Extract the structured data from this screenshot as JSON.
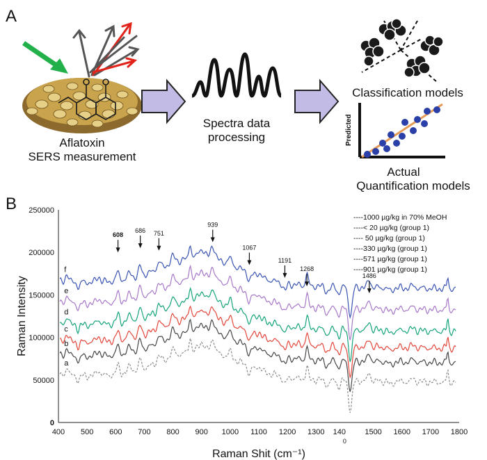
{
  "panel_a": {
    "letter": "A",
    "measurement_caption_line1": "Aflatoxin",
    "measurement_caption_line2": "SERS measurement",
    "processing_caption_line1": "Spectra data",
    "processing_caption_line2": "processing",
    "classification_caption": "Classification models",
    "scatter_ylabel": "Predicted",
    "scatter_xlabel": "Actual",
    "quantification_caption": "Quantification models",
    "colors": {
      "arrow": "#b6aee0",
      "green_beam": "#22b04b",
      "red_beam": "#e2231a",
      "gray_beam": "#555555",
      "dots": "#2b3fa8",
      "fit_line": "#e59a55"
    }
  },
  "panel_b": {
    "letter": "B",
    "chart_data": {
      "type": "line",
      "title": "",
      "xlabel": "Raman Shit (cm⁻¹)",
      "ylabel": "Raman Intensity",
      "xlim": [
        400,
        1800
      ],
      "ylim": [
        0,
        250000
      ],
      "x_ticks": [
        "400",
        "500",
        "600",
        "700",
        "800",
        "900",
        "1000",
        "1100",
        "1200",
        "1300",
        "140     ",
        "1500",
        "1600",
        "1700",
        "1800"
      ],
      "x_tick_stray": "0",
      "y_ticks": [
        "0",
        "50000",
        "100000",
        "150000",
        "200000",
        "250000"
      ],
      "legend": [
        "----1000 µg/kg in 70% MeOH",
        "----< 20 µg/kg (group 1)",
        "---- 50 µg/kg (group  1)",
        "----330 µg/kg (group 1)",
        "----571 µg/kg (group 1)",
        "----901 µg/kg (group 1)"
      ],
      "legend_position": "top-right",
      "series": [
        {
          "label": "a",
          "color": "#8a8a8a",
          "dashed": true,
          "offset": 55000
        },
        {
          "label": "b",
          "color": "#444444",
          "dashed": false,
          "offset": 78000
        },
        {
          "label": "c",
          "color": "#e2463a",
          "dashed": false,
          "offset": 95000
        },
        {
          "label": "d",
          "color": "#13a37a",
          "dashed": false,
          "offset": 115000
        },
        {
          "label": "e",
          "color": "#a777c8",
          "dashed": false,
          "offset": 140000
        },
        {
          "label": "f",
          "color": "#3953b2",
          "dashed": false,
          "offset": 165000
        }
      ],
      "peak_annotations": [
        {
          "label": "608",
          "x": 608,
          "y": 200000,
          "bold": true
        },
        {
          "label": "686",
          "x": 686,
          "y": 205000
        },
        {
          "label": "751",
          "x": 751,
          "y": 202000
        },
        {
          "label": "939",
          "x": 939,
          "y": 212000
        },
        {
          "label": "1067",
          "x": 1067,
          "y": 185000
        },
        {
          "label": "1191",
          "x": 1191,
          "y": 170000
        },
        {
          "label": "1268",
          "x": 1268,
          "y": 160000
        },
        {
          "label": "1486",
          "x": 1486,
          "y": 152000
        }
      ]
    }
  }
}
